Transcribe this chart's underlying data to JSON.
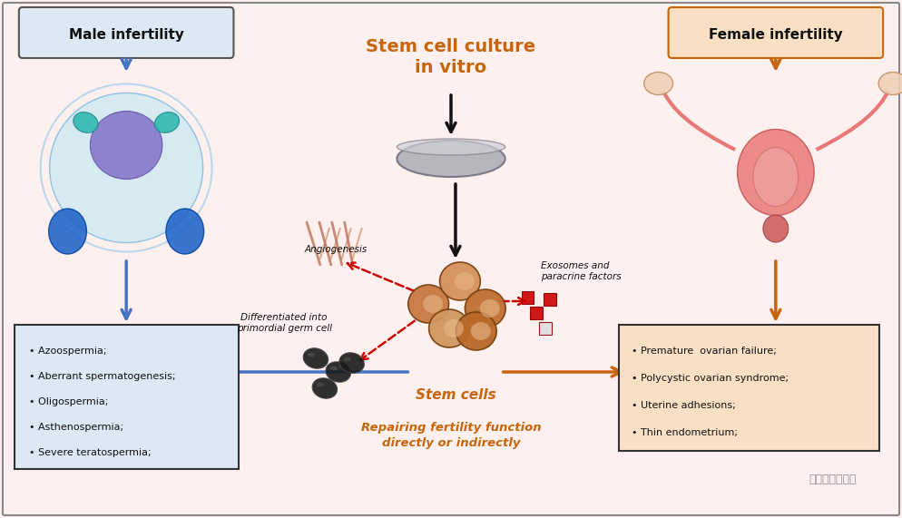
{
  "bg_color": "#fdf0ee",
  "border_color": "#888888",
  "title": "Stem cell culture\nin vitro",
  "title_color": "#c8650a",
  "male_title": "Male infertility",
  "female_title": "Female infertility",
  "male_box_bg": "#dce9f5",
  "male_box_border": "#333333",
  "female_box_bg": "#f9dfc4",
  "female_box_border": "#333333",
  "male_title_box_bg": "#dce9f5",
  "female_title_box_bg": "#f9dfc4",
  "male_items": [
    "• Azoospermia;",
    "• Aberrant spermatogenesis;",
    "• Oligospermia;",
    "• Asthenospermia;",
    "• Severe teratospermia;"
  ],
  "female_items": [
    "• Premature  ovarian failure;",
    "• Polycystic ovarian syndrome;",
    "• Uterine adhesions;",
    "• Thin endometrium;"
  ],
  "stem_cells_label": "Stem cells",
  "stem_cells_color": "#c8650a",
  "repair_label": "Repairing fertility function\ndirectly or indirectly",
  "repair_color": "#c8650a",
  "angiogenesis_label": "Angiogenesis",
  "exosomes_label": "Exosomes and\nparacrine factors",
  "diff_label": "Differentiated into\nprimordial germ cell",
  "arrow_blue": "#4472c4",
  "arrow_orange": "#c8650a",
  "arrow_red_dashed": "#cc0000",
  "watermark": "干细胞与外泌体"
}
